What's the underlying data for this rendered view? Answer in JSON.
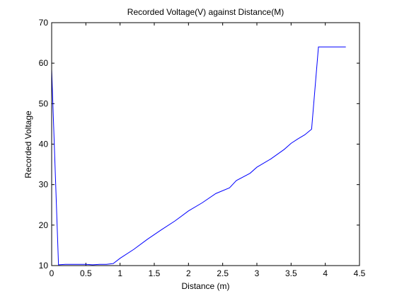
{
  "chart_data": {
    "type": "line",
    "title": "Recorded Voltage(V) against Distance(M)",
    "xlabel": "Distance (m)",
    "ylabel": "Recorded Voltage",
    "xlim": [
      0,
      4.5
    ],
    "ylim": [
      10,
      70
    ],
    "xticks": [
      0,
      0.5,
      1,
      1.5,
      2,
      2.5,
      3,
      3.5,
      4,
      4.5
    ],
    "xtick_labels": [
      "0",
      "0.5",
      "1",
      "1.5",
      "2",
      "2.5",
      "3",
      "3.5",
      "4",
      "4.5"
    ],
    "yticks": [
      10,
      20,
      30,
      40,
      50,
      60,
      70
    ],
    "ytick_labels": [
      "10",
      "20",
      "30",
      "40",
      "50",
      "60",
      "70"
    ],
    "grid": false,
    "line_color": "#0000ff",
    "series": [
      {
        "x": [
          0,
          0.1,
          0.2,
          0.3,
          0.4,
          0.5,
          0.6,
          0.7,
          0.8,
          0.9,
          1.0,
          1.2,
          1.4,
          1.6,
          1.8,
          2.0,
          2.2,
          2.4,
          2.6,
          2.7,
          2.9,
          3.0,
          3.2,
          3.4,
          3.5,
          3.6,
          3.7,
          3.8,
          3.9,
          4.0,
          4.1,
          4.2,
          4.3
        ],
        "y": [
          58.5,
          10.2,
          10.3,
          10.3,
          10.3,
          10.3,
          10.2,
          10.3,
          10.3,
          10.5,
          11.8,
          14.0,
          16.5,
          18.8,
          21.0,
          23.5,
          25.5,
          27.8,
          29.2,
          31.0,
          32.8,
          34.3,
          36.3,
          38.7,
          40.2,
          41.3,
          42.3,
          43.7,
          64.0,
          64.0,
          64.0,
          64.0,
          64.0
        ]
      }
    ]
  }
}
